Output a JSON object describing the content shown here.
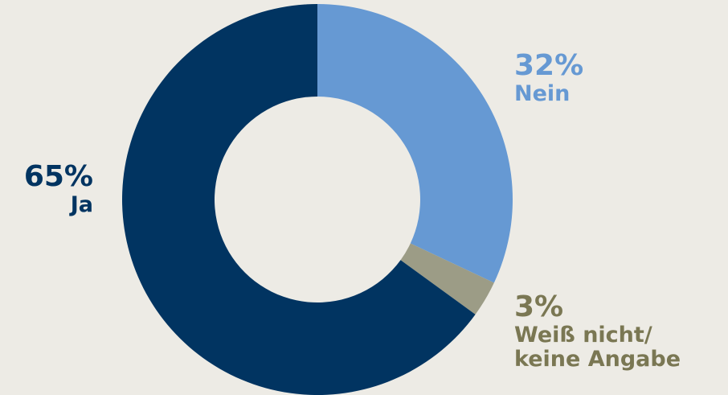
{
  "chart_data": {
    "type": "pie",
    "title": "",
    "donut": true,
    "slices": [
      {
        "label": "Nein",
        "value": 32,
        "value_label": "32%",
        "color": "#6699d3"
      },
      {
        "label": "Weiß nicht/ keine Angabe",
        "label_lines": [
          "Weiß nicht/",
          "keine Angabe"
        ],
        "value": 3,
        "value_label": "3%",
        "color": "#9c9c86"
      },
      {
        "label": "Ja",
        "value": 65,
        "value_label": "65%",
        "color": "#013461"
      }
    ],
    "label_colors": {
      "Nein": "#6699d3",
      "Weiß nicht/ keine Angabe": "#7a7753",
      "Ja": "#013461"
    },
    "start_angle": "top, clockwise"
  }
}
